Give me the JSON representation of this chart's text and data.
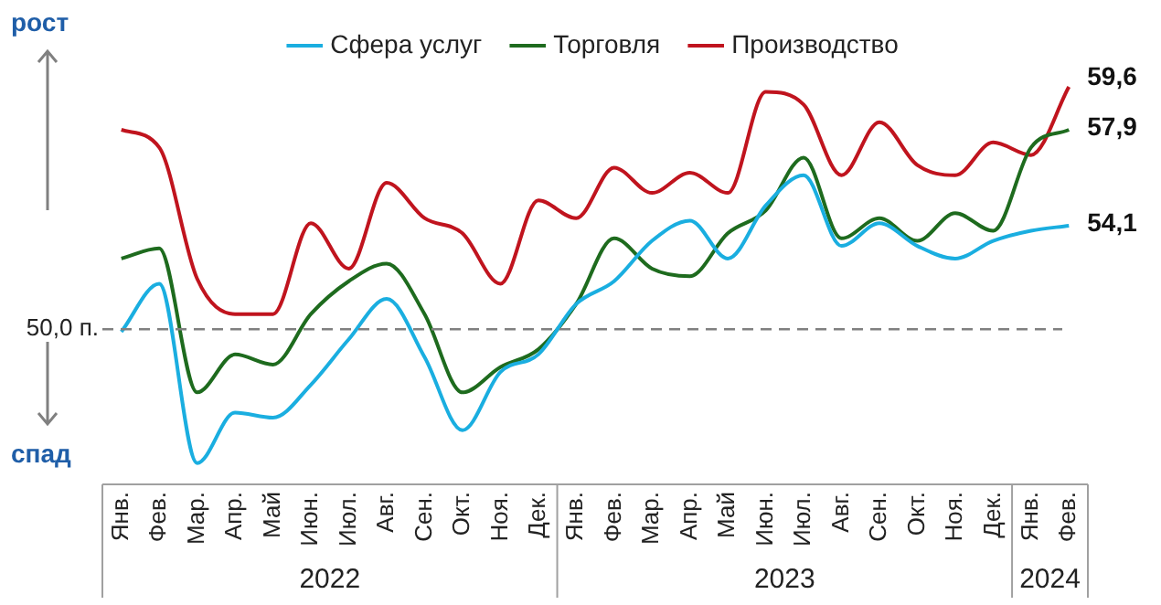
{
  "chart_data": {
    "type": "line",
    "categories": [
      "Янв.",
      "Фев.",
      "Мар.",
      "Апр.",
      "Май",
      "Июн.",
      "Июл.",
      "Авг.",
      "Сен.",
      "Окт.",
      "Ноя.",
      "Дек.",
      "Янв.",
      "Фев.",
      "Мар.",
      "Апр.",
      "Май",
      "Июн.",
      "Июл.",
      "Авг.",
      "Сен.",
      "Окт.",
      "Ноя.",
      "Дек.",
      "Янв.",
      "Фев."
    ],
    "series": [
      {
        "name": "Сфера услуг",
        "color": "#1aaee0",
        "values": [
          49.9,
          51.8,
          44.7,
          46.7,
          46.5,
          47.8,
          49.6,
          51.2,
          48.9,
          46.0,
          48.3,
          49.0,
          51.0,
          51.9,
          53.5,
          54.3,
          52.8,
          54.9,
          56.1,
          53.3,
          54.2,
          53.3,
          52.8,
          53.5,
          53.9,
          54.1
        ],
        "value_labels": [
          null,
          null,
          null,
          null,
          null,
          null,
          null,
          null,
          null,
          null,
          null,
          null,
          null,
          null,
          null,
          null,
          null,
          null,
          null,
          null,
          null,
          null,
          null,
          null,
          null,
          "54,1"
        ]
      },
      {
        "name": "Торговля",
        "color": "#1e6b1e",
        "values": [
          52.8,
          53.2,
          47.5,
          49.0,
          48.6,
          50.6,
          51.9,
          52.6,
          50.6,
          47.5,
          48.5,
          49.2,
          51.0,
          53.6,
          52.4,
          52.1,
          53.8,
          54.7,
          56.8,
          53.6,
          54.4,
          53.5,
          54.6,
          53.9,
          57.2,
          57.9
        ],
        "value_labels": [
          null,
          null,
          null,
          null,
          null,
          null,
          null,
          null,
          null,
          null,
          null,
          null,
          null,
          null,
          null,
          null,
          null,
          null,
          null,
          null,
          null,
          null,
          null,
          null,
          null,
          "57,9"
        ]
      },
      {
        "name": "Производство",
        "color": "#c0141e",
        "values": [
          57.9,
          57.2,
          52.0,
          50.6,
          50.6,
          54.2,
          52.4,
          55.8,
          54.4,
          53.8,
          51.8,
          55.1,
          54.4,
          56.4,
          55.4,
          56.2,
          55.4,
          59.4,
          58.9,
          56.1,
          58.2,
          56.5,
          56.1,
          57.4,
          56.9,
          59.6
        ],
        "value_labels": [
          null,
          null,
          null,
          null,
          null,
          null,
          null,
          null,
          null,
          null,
          null,
          null,
          null,
          null,
          null,
          null,
          null,
          null,
          null,
          null,
          null,
          null,
          null,
          null,
          null,
          "59,6"
        ]
      }
    ],
    "tick_labels": "x",
    "legend": "top",
    "marker": "none",
    "line_style": "solid",
    "ref_lines": [
      {
        "axis": "y",
        "value": 50,
        "label": "50,0 п.",
        "color": "#808080",
        "line_style": "dashed"
      }
    ],
    "annotations": [
      "рост",
      "спад",
      "2022",
      "2023",
      "2024"
    ]
  }
}
